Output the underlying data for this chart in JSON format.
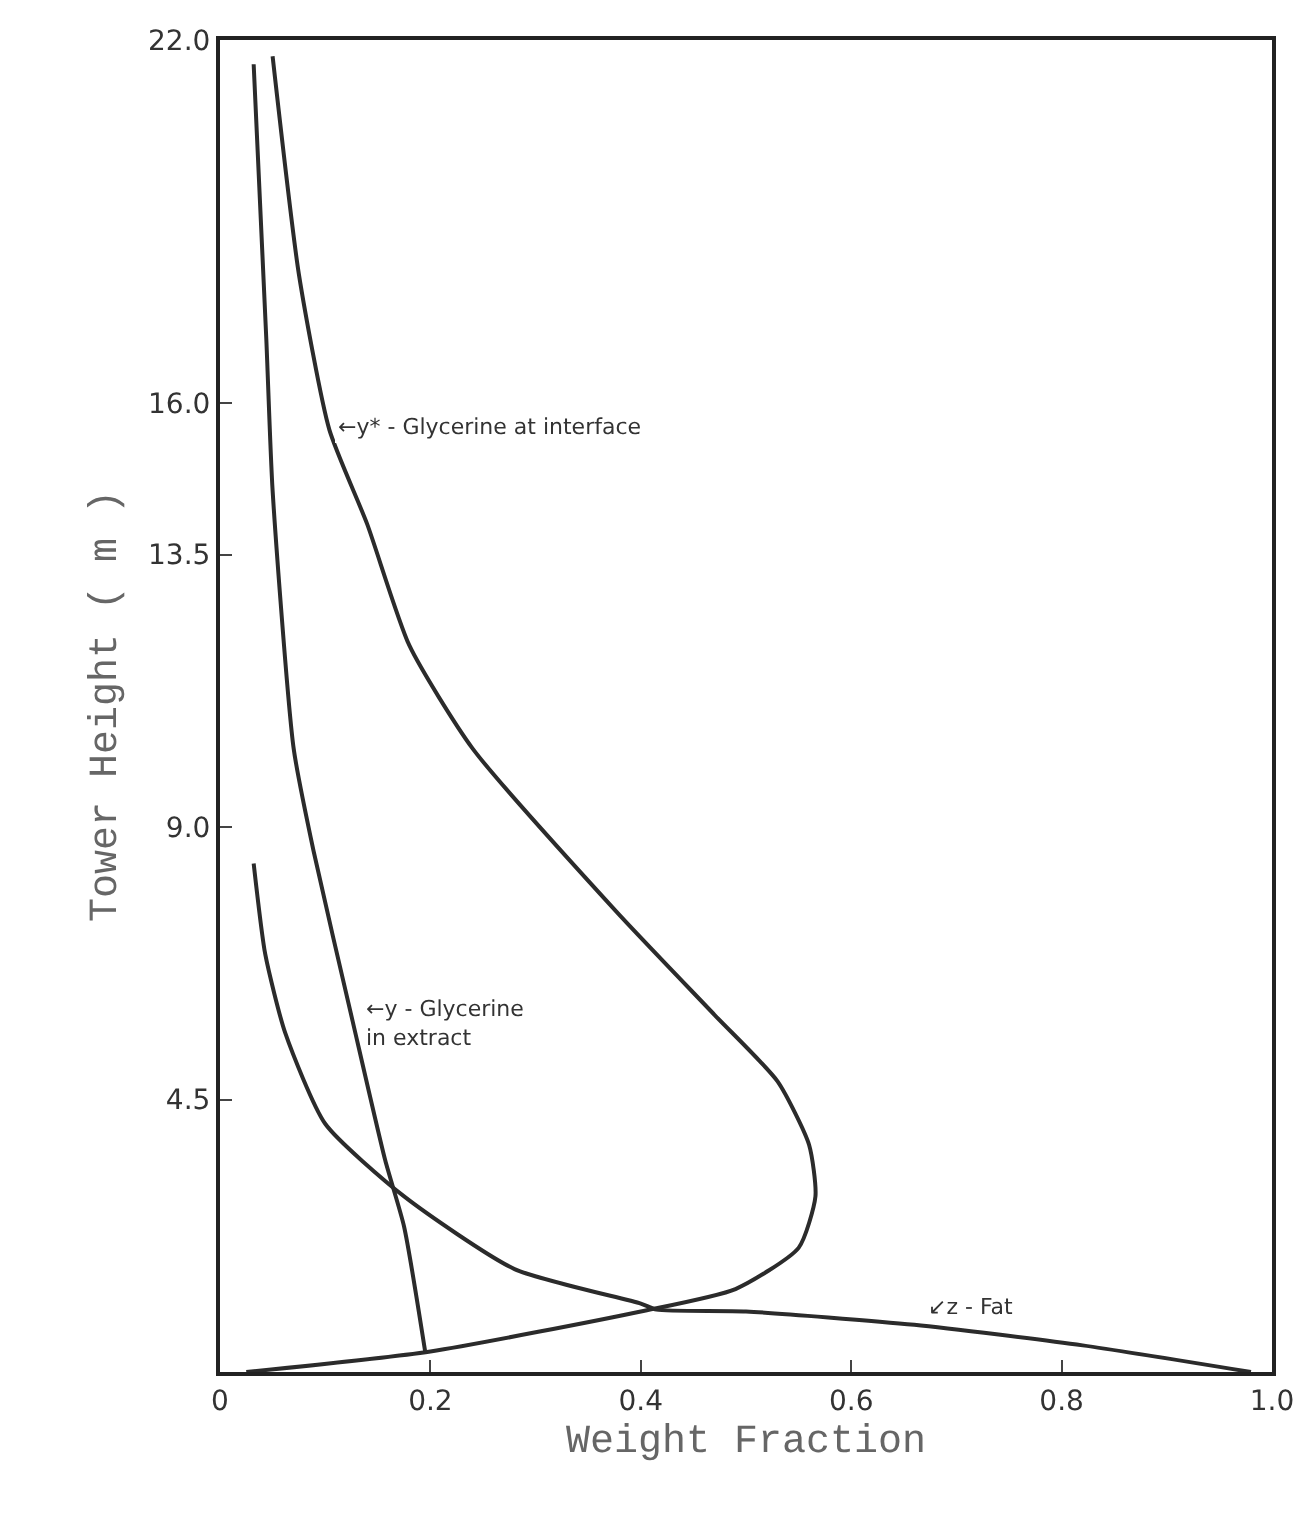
{
  "chart_data": {
    "type": "line",
    "xlabel": "Weight Fraction",
    "ylabel": "Tower Height ( m )",
    "xlim": [
      0,
      1.0
    ],
    "ylim": [
      0,
      22.0
    ],
    "xticks": [
      0,
      0.2,
      0.4,
      0.6,
      0.8,
      {
        "value": 1,
        "label": "1.0"
      }
    ],
    "yticks": [
      4.5,
      {
        "value": 9,
        "label": "9.0"
      },
      13.5,
      {
        "value": 16,
        "label": "16.0"
      },
      {
        "value": 22,
        "label": "22.0"
      }
    ],
    "grid": false,
    "legend": false,
    "marker": "none",
    "line_style": "solid",
    "series": [
      {
        "color": "#2b2b2b",
        "x": [
          0.025,
          0.2,
          0.4,
          0.49,
          0.55,
          0.566,
          0.56,
          0.53,
          0.47,
          0.377,
          0.24,
          0.18,
          0.14,
          0.104,
          0.075,
          0.05
        ],
        "values": [
          0,
          0.34,
          1.0,
          1.37,
          2.05,
          2.9,
          3.75,
          4.8,
          5.9,
          7.6,
          10.3,
          12.0,
          14.0,
          15.56,
          18.13,
          21.73
        ]
      },
      {
        "color": "#2b2b2b",
        "x": [
          0.195,
          0.175,
          0.157,
          0.126,
          0.089,
          0.07,
          0.05,
          0.044,
          0.032
        ],
        "values": [
          0.34,
          2.4,
          3.5,
          5.8,
          8.6,
          10.3,
          14.56,
          17.07,
          21.6
        ]
      },
      {
        "color": "#2b2b2b",
        "x": [
          0.98,
          0.82,
          0.66,
          0.5,
          0.415,
          0.4,
          0.28,
          0.175,
          0.1,
          0.062,
          0.043,
          0.032
        ],
        "values": [
          0,
          0.44,
          0.78,
          1.0,
          1.03,
          1.13,
          1.7,
          2.9,
          4.1,
          5.6,
          6.9,
          8.4
        ]
      }
    ],
    "annotations": [
      {
        "text": "←y* - Glycerine at interface",
        "x": 0.098,
        "y": 15.61
      },
      {
        "text": "←y - Glycerine\nin extract",
        "x": 0.126,
        "y": 6.0
      },
      {
        "text": "↙z - Fat",
        "x": 0.66,
        "y": 0.78
      }
    ]
  }
}
